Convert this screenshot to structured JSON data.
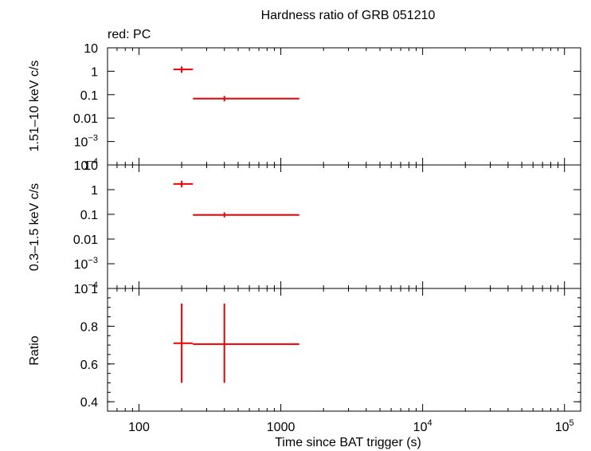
{
  "title": "Hardness ratio of GRB 051210",
  "legend_note": "red: PC",
  "chart_data": [
    {
      "panel": "hard",
      "type": "scatter",
      "ylabel": "1.51–10 keV c/s",
      "xscale": "log",
      "yscale": "log",
      "xlim": [
        60,
        130000
      ],
      "ylim": [
        0.0001,
        10
      ],
      "yticks": [
        {
          "v": 10,
          "label": "10"
        },
        {
          "v": 1,
          "label": "1"
        },
        {
          "v": 0.1,
          "label": "0.1"
        },
        {
          "v": 0.01,
          "label": "0.01"
        },
        {
          "v": 0.001,
          "base": "10",
          "exp": "−3"
        },
        {
          "v": 0.0001,
          "base": "10",
          "exp": "−4"
        }
      ],
      "series": [
        {
          "color": "#ee0000",
          "points": [
            {
              "x": 200,
              "xlo": 175,
              "xhi": 240,
              "y": 1.2,
              "ylo": 0.85,
              "yhi": 1.6
            },
            {
              "x": 400,
              "xlo": 240,
              "xhi": 1350,
              "y": 0.068,
              "ylo": 0.052,
              "yhi": 0.088
            }
          ]
        }
      ]
    },
    {
      "panel": "soft",
      "type": "scatter",
      "ylabel": "0.3–1.5 keV c/s",
      "xscale": "log",
      "yscale": "log",
      "xlim": [
        60,
        130000
      ],
      "ylim": [
        0.0001,
        10
      ],
      "yticks": [
        {
          "v": 10,
          "label": "10"
        },
        {
          "v": 1,
          "label": "1"
        },
        {
          "v": 0.1,
          "label": "0.1"
        },
        {
          "v": 0.01,
          "label": "0.01"
        },
        {
          "v": 0.001,
          "base": "10",
          "exp": "−3"
        },
        {
          "v": 0.0001,
          "base": "10",
          "exp": "−4"
        }
      ],
      "series": [
        {
          "color": "#ee0000",
          "points": [
            {
              "x": 200,
              "xlo": 175,
              "xhi": 240,
              "y": 1.7,
              "ylo": 1.25,
              "yhi": 2.3
            },
            {
              "x": 400,
              "xlo": 240,
              "xhi": 1350,
              "y": 0.095,
              "ylo": 0.075,
              "yhi": 0.12
            }
          ]
        }
      ]
    },
    {
      "panel": "ratio",
      "type": "scatter",
      "ylabel": "Ratio",
      "xlabel": "Time since BAT trigger (s)",
      "xscale": "log",
      "yscale": "linear",
      "xlim": [
        60,
        130000
      ],
      "ylim": [
        0.35,
        1.0
      ],
      "yticks": [
        {
          "v": 1,
          "label": "1"
        },
        {
          "v": 0.8,
          "label": "0.8"
        },
        {
          "v": 0.6,
          "label": "0.6"
        },
        {
          "v": 0.4,
          "label": "0.4"
        }
      ],
      "xticks": [
        {
          "v": 100,
          "label": "100"
        },
        {
          "v": 1000,
          "label": "1000"
        },
        {
          "v": 10000,
          "base": "10",
          "exp": "4"
        },
        {
          "v": 100000,
          "base": "10",
          "exp": "5"
        }
      ],
      "series": [
        {
          "color": "#ee0000",
          "points": [
            {
              "x": 200,
              "xlo": 175,
              "xhi": 240,
              "y": 0.71,
              "ylo": 0.5,
              "yhi": 0.92
            },
            {
              "x": 400,
              "xlo": 240,
              "xhi": 1350,
              "y": 0.705,
              "ylo": 0.5,
              "yhi": 0.92
            }
          ]
        }
      ]
    }
  ]
}
